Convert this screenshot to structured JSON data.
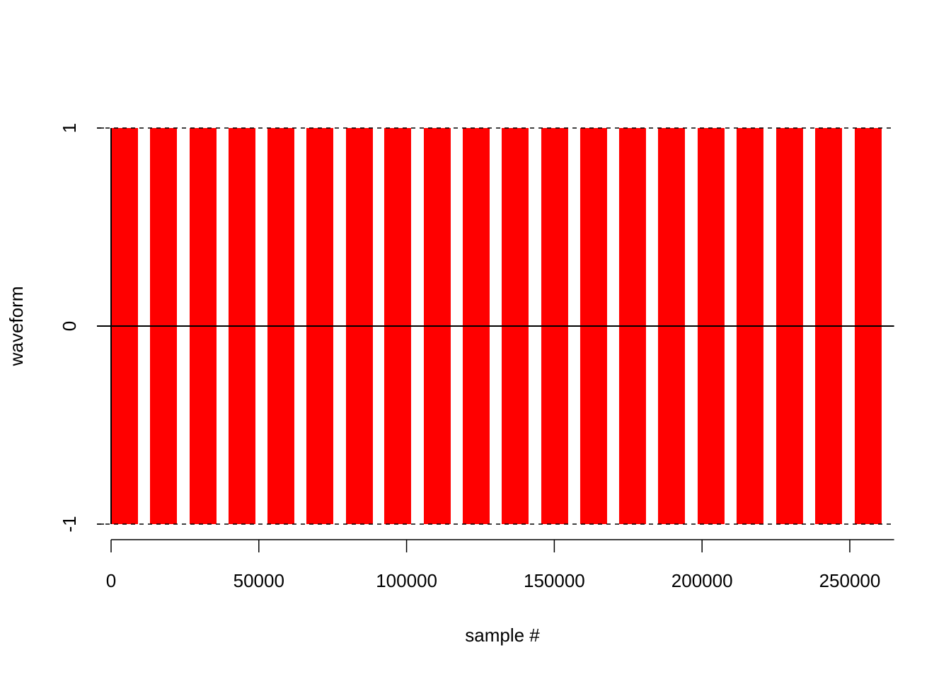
{
  "chart_data": {
    "type": "bursts",
    "x_label": "sample #",
    "y_label": "waveform",
    "color": "#ff0000",
    "start": [
      0,
      13170,
      26580,
      39750,
      52920,
      66090,
      79500,
      92430,
      105840,
      119010,
      132180,
      145590,
      158760,
      171930,
      185100,
      198510,
      211680,
      225100,
      238270,
      251680
    ],
    "end": [
      9100,
      22270,
      35680,
      48850,
      62020,
      75190,
      88600,
      101530,
      114940,
      128110,
      141280,
      154690,
      167860,
      181030,
      194200,
      207610,
      220780,
      234190,
      247370,
      260780
    ],
    "low": [
      -1,
      -1,
      -1,
      -1,
      -1,
      -1,
      -1,
      -1,
      -1,
      -1,
      -1,
      -1,
      -1,
      -1,
      -1,
      -1,
      -1,
      -1,
      -1,
      -1
    ],
    "high": [
      1,
      1,
      1,
      1,
      1,
      1,
      1,
      1,
      1,
      1,
      1,
      1,
      1,
      1,
      1,
      1,
      1,
      1,
      1,
      1
    ],
    "xlim": [
      0,
      265000
    ],
    "xticks": [
      0,
      50000,
      100000,
      150000,
      200000,
      250000
    ],
    "ylim": [
      -1,
      1
    ],
    "yticks": [
      -1,
      0,
      1
    ],
    "dashed_hlines": [
      -1,
      1
    ],
    "solid_hlines": [
      0
    ],
    "vlines": [
      0
    ]
  }
}
